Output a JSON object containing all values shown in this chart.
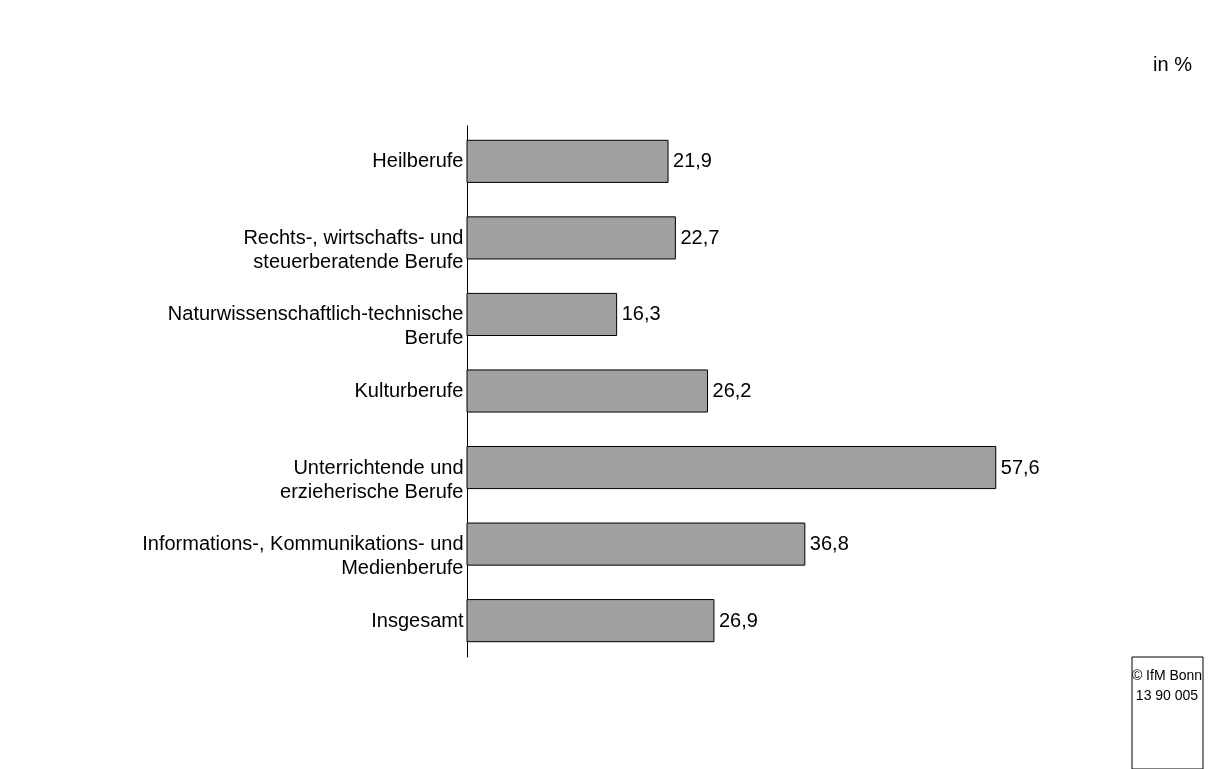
{
  "chart_data": {
    "type": "bar",
    "orientation": "horizontal",
    "categories": [
      "Heilberufe",
      "Rechts-, wirtschafts- und\nsteuerberatende Berufe",
      "Naturwissenschaftlich-technische\nBerufe",
      "Kulturberufe",
      "Unterrichtende und\nerzieherische Berufe",
      "Informations-, Kommunikations- und\nMedienberufe",
      "Insgesamt"
    ],
    "values": [
      21.9,
      22.7,
      16.3,
      26.2,
      57.6,
      36.8,
      26.9
    ],
    "value_labels": [
      "21,9",
      "22,7",
      "16,3",
      "26,2",
      "57,6",
      "36,8",
      "26,9"
    ],
    "color": "#a0a0a0",
    "annotations": [
      "in %",
      "© IfM Bonn\n13 90 005"
    ]
  }
}
